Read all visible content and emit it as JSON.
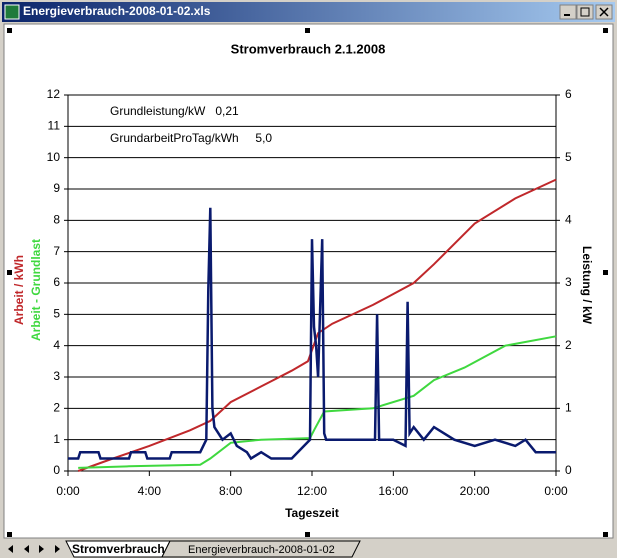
{
  "window": {
    "title": "Energieverbrauch-2008-01-02.xls",
    "tabs": [
      "Stromverbrauch",
      "Energieverbrauch-2008-01-02"
    ]
  },
  "chart_data": {
    "type": "line",
    "title": "Stromverbrauch 2.1.2008",
    "x_label": "Tageszeit",
    "y_labels": [
      "Arbeit / kWh",
      "Arbeit - Grundlast"
    ],
    "y2_label": "Leistung / kW",
    "annotations": [
      "Grundleistung/kW   0,21",
      "GrundarbeitProTag/kWh     5,0"
    ],
    "xlim": [
      0,
      24
    ],
    "xticks": [
      {
        "value": 0,
        "label": "0:00"
      },
      {
        "value": 4,
        "label": "4:00"
      },
      {
        "value": 8,
        "label": "8:00"
      },
      {
        "value": 12,
        "label": "12:00"
      },
      {
        "value": 16,
        "label": "16:00"
      },
      {
        "value": 20,
        "label": "20:00"
      },
      {
        "value": 24,
        "label": "0:00"
      }
    ],
    "ylim": [
      0,
      12
    ],
    "yticks": [
      0,
      1,
      2,
      3,
      4,
      5,
      6,
      7,
      8,
      9,
      10,
      11,
      12
    ],
    "y2lim": [
      0,
      6
    ],
    "y2ticks": [
      0,
      1,
      2,
      3,
      4,
      5,
      6
    ],
    "grid": true,
    "series": [
      {
        "name": "Arbeit / kWh",
        "color": "#c0282b",
        "axis": "y",
        "x": [
          0.5,
          2,
          4,
          6,
          7,
          8,
          9.5,
          11,
          11.8,
          12.3,
          13,
          15,
          17,
          18,
          20,
          22,
          24
        ],
        "values": [
          0,
          0.35,
          0.8,
          1.3,
          1.6,
          2.2,
          2.7,
          3.2,
          3.5,
          4.4,
          4.7,
          5.3,
          6.0,
          6.6,
          7.9,
          8.7,
          9.3
        ]
      },
      {
        "name": "Arbeit - Grundlast",
        "color": "#3fd83f",
        "axis": "y",
        "x": [
          0.5,
          3,
          6.5,
          7,
          8,
          9.5,
          11.9,
          12.1,
          12.6,
          15,
          17,
          18,
          19.5,
          21.5,
          24
        ],
        "values": [
          0.1,
          0.15,
          0.2,
          0.4,
          0.9,
          1.0,
          1.05,
          1.3,
          1.9,
          2.0,
          2.4,
          2.9,
          3.3,
          4.0,
          4.3
        ]
      },
      {
        "name": "Leistung / kW",
        "color": "#0a1a6e",
        "axis": "y2",
        "x": [
          0,
          0.5,
          0.6,
          1.5,
          1.6,
          3,
          3.1,
          3.8,
          3.9,
          5,
          5.1,
          6.5,
          6.8,
          6.9,
          7.0,
          7.1,
          7.2,
          7.4,
          7.6,
          8,
          8.3,
          8.8,
          9,
          9.5,
          10,
          11,
          11.9,
          12.0,
          12.1,
          12.2,
          12.3,
          12.5,
          12.6,
          12.7,
          12.8,
          13.5,
          14.5,
          15.1,
          15.2,
          15.3,
          16,
          16.6,
          16.7,
          16.8,
          17,
          17.5,
          18,
          18.5,
          19,
          20,
          21,
          22,
          22.5,
          23,
          23.5,
          24
        ],
        "values": [
          0.2,
          0.2,
          0.3,
          0.3,
          0.2,
          0.2,
          0.3,
          0.3,
          0.2,
          0.2,
          0.3,
          0.3,
          0.5,
          2.9,
          4.2,
          1.0,
          0.7,
          0.6,
          0.5,
          0.6,
          0.4,
          0.3,
          0.2,
          0.3,
          0.2,
          0.2,
          0.5,
          3.7,
          2.3,
          2.0,
          1.5,
          3.7,
          0.6,
          0.5,
          0.5,
          0.5,
          0.5,
          0.5,
          2.5,
          0.5,
          0.5,
          0.4,
          2.7,
          0.6,
          0.7,
          0.5,
          0.7,
          0.6,
          0.5,
          0.4,
          0.5,
          0.4,
          0.5,
          0.3,
          0.3,
          0.3
        ]
      }
    ]
  }
}
